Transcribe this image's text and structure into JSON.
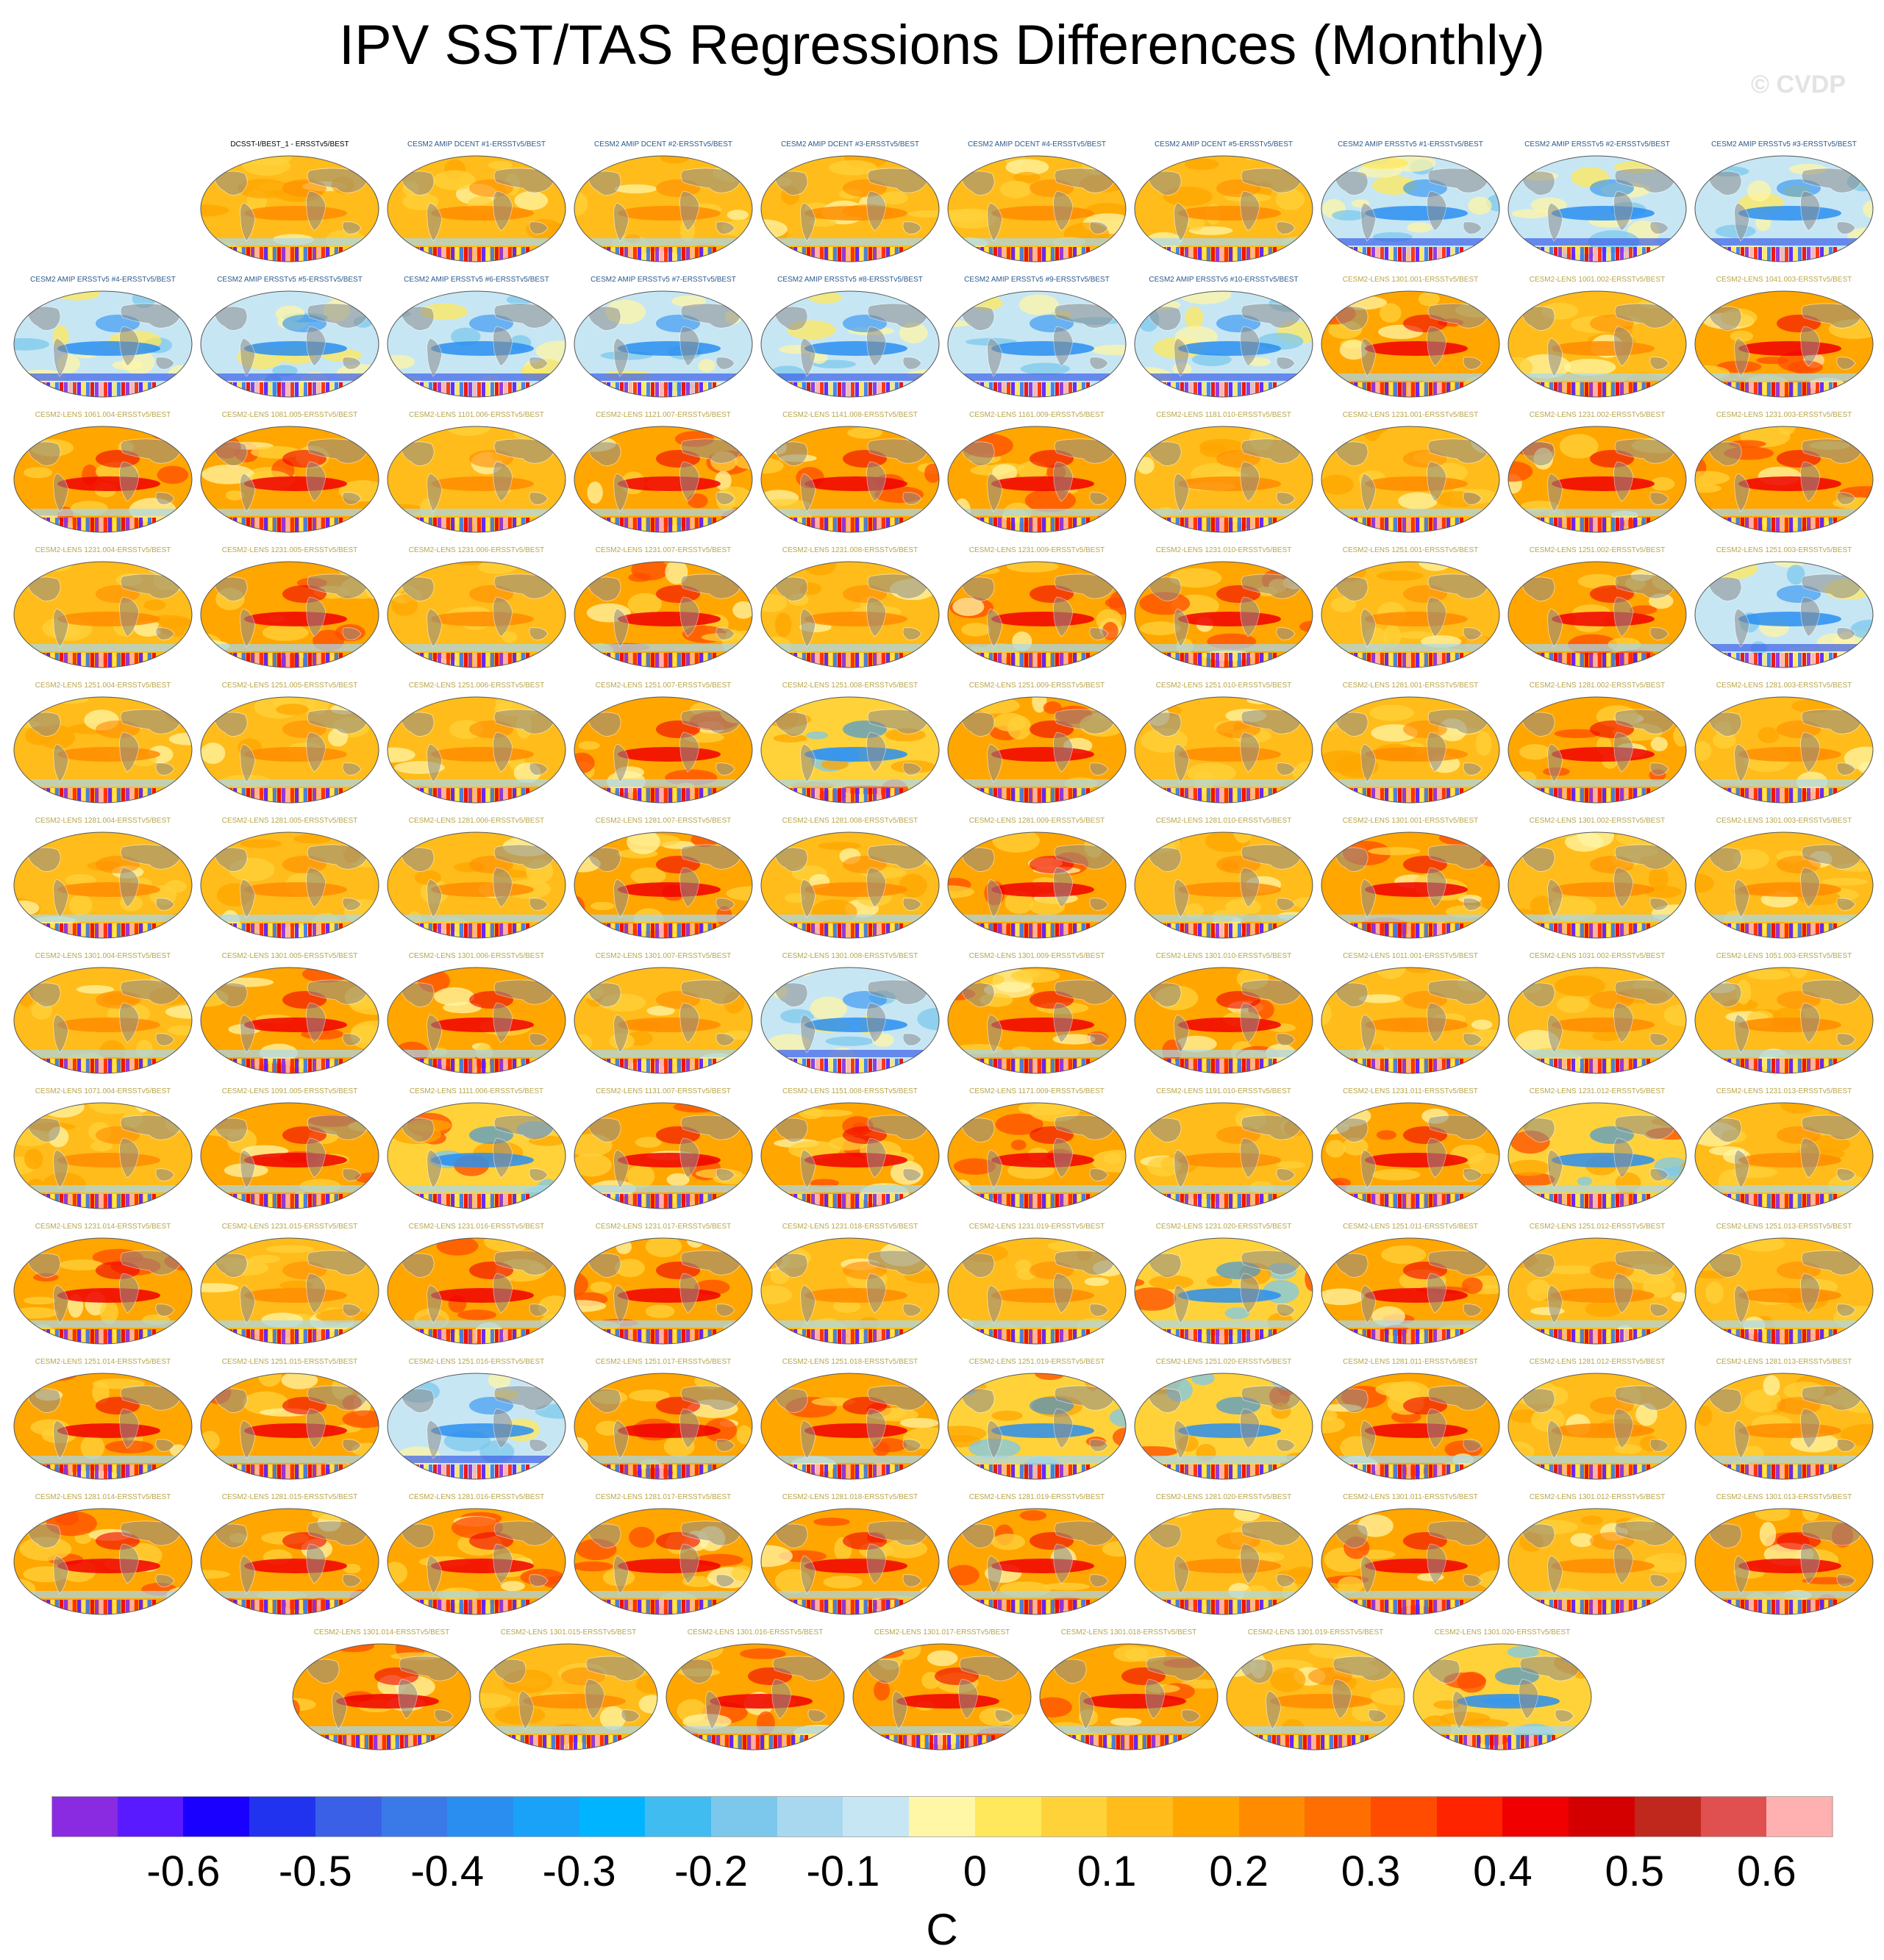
{
  "title": "IPV SST/TAS Regressions Differences (Monthly)",
  "watermark": "© CVDP",
  "chart_data": {
    "type": "heatmap",
    "title": "IPV SST/TAS Regressions Differences (Monthly)",
    "colorbar": {
      "units": "C",
      "tick_labels": [
        "-0.6",
        "-0.5",
        "-0.4",
        "-0.3",
        "-0.2",
        "-0.1",
        "0",
        "0.1",
        "0.2",
        "0.3",
        "0.4",
        "0.5",
        "0.6"
      ],
      "tick_values": [
        -0.6,
        -0.5,
        -0.4,
        -0.3,
        -0.2,
        -0.1,
        0,
        0.1,
        0.2,
        0.3,
        0.4,
        0.5,
        0.6
      ],
      "levels": [
        -0.65,
        -0.6,
        -0.55,
        -0.5,
        -0.45,
        -0.4,
        -0.35,
        -0.3,
        -0.25,
        -0.2,
        -0.15,
        -0.1,
        -0.05,
        0,
        0.05,
        0.1,
        0.15,
        0.2,
        0.25,
        0.3,
        0.35,
        0.4,
        0.45,
        0.5,
        0.55,
        0.6,
        0.65
      ],
      "colors": [
        "#8a2be2",
        "#5a1aff",
        "#1a00ff",
        "#2233f0",
        "#3a60e8",
        "#3a7ae8",
        "#2a8ef0",
        "#1aa2f8",
        "#00b4ff",
        "#40bcf0",
        "#7cc8ec",
        "#a8d8f0",
        "#c6e6f4",
        "#fff6a6",
        "#ffe85c",
        "#ffd23a",
        "#ffbc1a",
        "#ffa600",
        "#ff8c00",
        "#ff6e00",
        "#ff4c00",
        "#ff2400",
        "#f00000",
        "#d40000",
        "#c0281e",
        "#e05050",
        "#ffb0b0"
      ]
    },
    "rows": [
      {
        "panels": [
          {
            "label": "DCSST-I/BEST_1 - ERSSTv5/BEST",
            "pattern": "warm",
            "label_color": "#000000"
          },
          {
            "label": "CESM2 AMIP DCENT #1-ERSSTv5/BEST",
            "pattern": "warm",
            "label_color": "#2a5a8c"
          },
          {
            "label": "CESM2 AMIP DCENT #2-ERSSTv5/BEST",
            "pattern": "warm",
            "label_color": "#2a5a8c"
          },
          {
            "label": "CESM2 AMIP DCENT #3-ERSSTv5/BEST",
            "pattern": "warm",
            "label_color": "#2a5a8c"
          },
          {
            "label": "CESM2 AMIP DCENT #4-ERSSTv5/BEST",
            "pattern": "warm",
            "label_color": "#2a5a8c"
          },
          {
            "label": "CESM2 AMIP DCENT #5-ERSSTv5/BEST",
            "pattern": "warm",
            "label_color": "#2a5a8c"
          },
          {
            "label": "CESM2 AMIP ERSSTv5 #1-ERSSTv5/BEST",
            "pattern": "cool",
            "label_color": "#2a5a8c"
          },
          {
            "label": "CESM2 AMIP ERSSTv5 #2-ERSSTv5/BEST",
            "pattern": "cool",
            "label_color": "#2a5a8c"
          },
          {
            "label": "CESM2 AMIP ERSSTv5 #3-ERSSTv5/BEST",
            "pattern": "cool",
            "label_color": "#2a5a8c"
          }
        ]
      },
      {
        "panels": [
          {
            "label": "CESM2 AMIP ERSSTv5 #4-ERSSTv5/BEST",
            "pattern": "cool",
            "label_color": "#2a5a8c"
          },
          {
            "label": "CESM2 AMIP ERSSTv5 #5-ERSSTv5/BEST",
            "pattern": "cool",
            "label_color": "#2a5a8c"
          },
          {
            "label": "CESM2 AMIP ERSSTv5 #6-ERSSTv5/BEST",
            "pattern": "cool",
            "label_color": "#2a5a8c"
          },
          {
            "label": "CESM2 AMIP ERSSTv5 #7-ERSSTv5/BEST",
            "pattern": "cool",
            "label_color": "#2a5a8c"
          },
          {
            "label": "CESM2 AMIP ERSSTv5 #8-ERSSTv5/BEST",
            "pattern": "cool",
            "label_color": "#2a5a8c"
          },
          {
            "label": "CESM2 AMIP ERSSTv5 #9-ERSSTv5/BEST",
            "pattern": "cool",
            "label_color": "#2a5a8c"
          },
          {
            "label": "CESM2 AMIP ERSSTv5 #10-ERSSTv5/BEST",
            "pattern": "cool",
            "label_color": "#2a5a8c"
          },
          {
            "label": "CESM2-LENS 1301.001-ERSSTv5/BEST",
            "pattern": "strong",
            "label_color": "#b8a64a"
          },
          {
            "label": "CESM2-LENS 1001.002-ERSSTv5/BEST",
            "pattern": "warm",
            "label_color": "#b8a64a"
          },
          {
            "label": "CESM2-LENS 1041.003-ERSSTv5/BEST",
            "pattern": "strong",
            "label_color": "#b8a64a"
          }
        ]
      },
      {
        "panels": [
          {
            "label": "CESM2-LENS 1061.004-ERSSTv5/BEST",
            "pattern": "strong",
            "label_color": "#b8a64a"
          },
          {
            "label": "CESM2-LENS 1081.005-ERSSTv5/BEST",
            "pattern": "strong",
            "label_color": "#b8a64a"
          },
          {
            "label": "CESM2-LENS 1101.006-ERSSTv5/BEST",
            "pattern": "warm",
            "label_color": "#b8a64a"
          },
          {
            "label": "CESM2-LENS 1121.007-ERSSTv5/BEST",
            "pattern": "strong",
            "label_color": "#b8a64a"
          },
          {
            "label": "CESM2-LENS 1141.008-ERSSTv5/BEST",
            "pattern": "strong",
            "label_color": "#b8a64a"
          },
          {
            "label": "CESM2-LENS 1161.009-ERSSTv5/BEST",
            "pattern": "strong",
            "label_color": "#b8a64a"
          },
          {
            "label": "CESM2-LENS 1181.010-ERSSTv5/BEST",
            "pattern": "warm",
            "label_color": "#b8a64a"
          },
          {
            "label": "CESM2-LENS 1231.001-ERSSTv5/BEST",
            "pattern": "warm",
            "label_color": "#b8a64a"
          },
          {
            "label": "CESM2-LENS 1231.002-ERSSTv5/BEST",
            "pattern": "strong",
            "label_color": "#b8a64a"
          },
          {
            "label": "CESM2-LENS 1231.003-ERSSTv5/BEST",
            "pattern": "strong",
            "label_color": "#b8a64a"
          }
        ]
      },
      {
        "panels": [
          {
            "label": "CESM2-LENS 1231.004-ERSSTv5/BEST",
            "pattern": "warm",
            "label_color": "#b8a64a"
          },
          {
            "label": "CESM2-LENS 1231.005-ERSSTv5/BEST",
            "pattern": "strong",
            "label_color": "#b8a64a"
          },
          {
            "label": "CESM2-LENS 1231.006-ERSSTv5/BEST",
            "pattern": "warm",
            "label_color": "#b8a64a"
          },
          {
            "label": "CESM2-LENS 1231.007-ERSSTv5/BEST",
            "pattern": "strong",
            "label_color": "#b8a64a"
          },
          {
            "label": "CESM2-LENS 1231.008-ERSSTv5/BEST",
            "pattern": "warm",
            "label_color": "#b8a64a"
          },
          {
            "label": "CESM2-LENS 1231.009-ERSSTv5/BEST",
            "pattern": "strong",
            "label_color": "#b8a64a"
          },
          {
            "label": "CESM2-LENS 1231.010-ERSSTv5/BEST",
            "pattern": "strong",
            "label_color": "#b8a64a"
          },
          {
            "label": "CESM2-LENS 1251.001-ERSSTv5/BEST",
            "pattern": "warm",
            "label_color": "#b8a64a"
          },
          {
            "label": "CESM2-LENS 1251.002-ERSSTv5/BEST",
            "pattern": "strong",
            "label_color": "#b8a64a"
          },
          {
            "label": "CESM2-LENS 1251.003-ERSSTv5/BEST",
            "pattern": "cool",
            "label_color": "#b8a64a"
          }
        ]
      },
      {
        "panels": [
          {
            "label": "CESM2-LENS 1251.004-ERSSTv5/BEST",
            "pattern": "warm",
            "label_color": "#b8a64a"
          },
          {
            "label": "CESM2-LENS 1251.005-ERSSTv5/BEST",
            "pattern": "warm",
            "label_color": "#b8a64a"
          },
          {
            "label": "CESM2-LENS 1251.006-ERSSTv5/BEST",
            "pattern": "warm",
            "label_color": "#b8a64a"
          },
          {
            "label": "CESM2-LENS 1251.007-ERSSTv5/BEST",
            "pattern": "strong",
            "label_color": "#b8a64a"
          },
          {
            "label": "CESM2-LENS 1251.008-ERSSTv5/BEST",
            "pattern": "mixed",
            "label_color": "#b8a64a"
          },
          {
            "label": "CESM2-LENS 1251.009-ERSSTv5/BEST",
            "pattern": "strong",
            "label_color": "#b8a64a"
          },
          {
            "label": "CESM2-LENS 1251.010-ERSSTv5/BEST",
            "pattern": "warm",
            "label_color": "#b8a64a"
          },
          {
            "label": "CESM2-LENS 1281.001-ERSSTv5/BEST",
            "pattern": "warm",
            "label_color": "#b8a64a"
          },
          {
            "label": "CESM2-LENS 1281.002-ERSSTv5/BEST",
            "pattern": "strong",
            "label_color": "#b8a64a"
          },
          {
            "label": "CESM2-LENS 1281.003-ERSSTv5/BEST",
            "pattern": "warm",
            "label_color": "#b8a64a"
          }
        ]
      },
      {
        "panels": [
          {
            "label": "CESM2-LENS 1281.004-ERSSTv5/BEST",
            "pattern": "warm",
            "label_color": "#b8a64a"
          },
          {
            "label": "CESM2-LENS 1281.005-ERSSTv5/BEST",
            "pattern": "warm",
            "label_color": "#b8a64a"
          },
          {
            "label": "CESM2-LENS 1281.006-ERSSTv5/BEST",
            "pattern": "warm",
            "label_color": "#b8a64a"
          },
          {
            "label": "CESM2-LENS 1281.007-ERSSTv5/BEST",
            "pattern": "strong",
            "label_color": "#b8a64a"
          },
          {
            "label": "CESM2-LENS 1281.008-ERSSTv5/BEST",
            "pattern": "warm",
            "label_color": "#b8a64a"
          },
          {
            "label": "CESM2-LENS 1281.009-ERSSTv5/BEST",
            "pattern": "strong",
            "label_color": "#b8a64a"
          },
          {
            "label": "CESM2-LENS 1281.010-ERSSTv5/BEST",
            "pattern": "warm",
            "label_color": "#b8a64a"
          },
          {
            "label": "CESM2-LENS 1301.001-ERSSTv5/BEST",
            "pattern": "strong",
            "label_color": "#b8a64a"
          },
          {
            "label": "CESM2-LENS 1301.002-ERSSTv5/BEST",
            "pattern": "warm",
            "label_color": "#b8a64a"
          },
          {
            "label": "CESM2-LENS 1301.003-ERSSTv5/BEST",
            "pattern": "warm",
            "label_color": "#b8a64a"
          }
        ]
      },
      {
        "panels": [
          {
            "label": "CESM2-LENS 1301.004-ERSSTv5/BEST",
            "pattern": "warm",
            "label_color": "#b8a64a"
          },
          {
            "label": "CESM2-LENS 1301.005-ERSSTv5/BEST",
            "pattern": "strong",
            "label_color": "#b8a64a"
          },
          {
            "label": "CESM2-LENS 1301.006-ERSSTv5/BEST",
            "pattern": "strong",
            "label_color": "#b8a64a"
          },
          {
            "label": "CESM2-LENS 1301.007-ERSSTv5/BEST",
            "pattern": "warm",
            "label_color": "#b8a64a"
          },
          {
            "label": "CESM2-LENS 1301.008-ERSSTv5/BEST",
            "pattern": "cool",
            "label_color": "#b8a64a"
          },
          {
            "label": "CESM2-LENS 1301.009-ERSSTv5/BEST",
            "pattern": "strong",
            "label_color": "#b8a64a"
          },
          {
            "label": "CESM2-LENS 1301.010-ERSSTv5/BEST",
            "pattern": "strong",
            "label_color": "#b8a64a"
          },
          {
            "label": "CESM2-LENS 1011.001-ERSSTv5/BEST",
            "pattern": "warm",
            "label_color": "#b8a64a"
          },
          {
            "label": "CESM2-LENS 1031.002-ERSSTv5/BEST",
            "pattern": "warm",
            "label_color": "#b8a64a"
          },
          {
            "label": "CESM2-LENS 1051.003-ERSSTv5/BEST",
            "pattern": "warm",
            "label_color": "#b8a64a"
          }
        ]
      },
      {
        "panels": [
          {
            "label": "CESM2-LENS 1071.004-ERSSTv5/BEST",
            "pattern": "warm",
            "label_color": "#b8a64a"
          },
          {
            "label": "CESM2-LENS 1091.005-ERSSTv5/BEST",
            "pattern": "strong",
            "label_color": "#b8a64a"
          },
          {
            "label": "CESM2-LENS 1111.006-ERSSTv5/BEST",
            "pattern": "mixed",
            "label_color": "#b8a64a"
          },
          {
            "label": "CESM2-LENS 1131.007-ERSSTv5/BEST",
            "pattern": "strong",
            "label_color": "#b8a64a"
          },
          {
            "label": "CESM2-LENS 1151.008-ERSSTv5/BEST",
            "pattern": "strong",
            "label_color": "#b8a64a"
          },
          {
            "label": "CESM2-LENS 1171.009-ERSSTv5/BEST",
            "pattern": "strong",
            "label_color": "#b8a64a"
          },
          {
            "label": "CESM2-LENS 1191.010-ERSSTv5/BEST",
            "pattern": "warm",
            "label_color": "#b8a64a"
          },
          {
            "label": "CESM2-LENS 1231.011-ERSSTv5/BEST",
            "pattern": "strong",
            "label_color": "#b8a64a"
          },
          {
            "label": "CESM2-LENS 1231.012-ERSSTv5/BEST",
            "pattern": "mixed",
            "label_color": "#b8a64a"
          },
          {
            "label": "CESM2-LENS 1231.013-ERSSTv5/BEST",
            "pattern": "warm",
            "label_color": "#b8a64a"
          }
        ]
      },
      {
        "panels": [
          {
            "label": "CESM2-LENS 1231.014-ERSSTv5/BEST",
            "pattern": "strong",
            "label_color": "#b8a64a"
          },
          {
            "label": "CESM2-LENS 1231.015-ERSSTv5/BEST",
            "pattern": "warm",
            "label_color": "#b8a64a"
          },
          {
            "label": "CESM2-LENS 1231.016-ERSSTv5/BEST",
            "pattern": "strong",
            "label_color": "#b8a64a"
          },
          {
            "label": "CESM2-LENS 1231.017-ERSSTv5/BEST",
            "pattern": "strong",
            "label_color": "#b8a64a"
          },
          {
            "label": "CESM2-LENS 1231.018-ERSSTv5/BEST",
            "pattern": "warm",
            "label_color": "#b8a64a"
          },
          {
            "label": "CESM2-LENS 1231.019-ERSSTv5/BEST",
            "pattern": "warm",
            "label_color": "#b8a64a"
          },
          {
            "label": "CESM2-LENS 1231.020-ERSSTv5/BEST",
            "pattern": "mixed",
            "label_color": "#b8a64a"
          },
          {
            "label": "CESM2-LENS 1251.011-ERSSTv5/BEST",
            "pattern": "strong",
            "label_color": "#b8a64a"
          },
          {
            "label": "CESM2-LENS 1251.012-ERSSTv5/BEST",
            "pattern": "warm",
            "label_color": "#b8a64a"
          },
          {
            "label": "CESM2-LENS 1251.013-ERSSTv5/BEST",
            "pattern": "warm",
            "label_color": "#b8a64a"
          }
        ]
      },
      {
        "panels": [
          {
            "label": "CESM2-LENS 1251.014-ERSSTv5/BEST",
            "pattern": "strong",
            "label_color": "#b8a64a"
          },
          {
            "label": "CESM2-LENS 1251.015-ERSSTv5/BEST",
            "pattern": "strong",
            "label_color": "#b8a64a"
          },
          {
            "label": "CESM2-LENS 1251.016-ERSSTv5/BEST",
            "pattern": "cool",
            "label_color": "#b8a64a"
          },
          {
            "label": "CESM2-LENS 1251.017-ERSSTv5/BEST",
            "pattern": "strong",
            "label_color": "#b8a64a"
          },
          {
            "label": "CESM2-LENS 1251.018-ERSSTv5/BEST",
            "pattern": "strong",
            "label_color": "#b8a64a"
          },
          {
            "label": "CESM2-LENS 1251.019-ERSSTv5/BEST",
            "pattern": "mixed",
            "label_color": "#b8a64a"
          },
          {
            "label": "CESM2-LENS 1251.020-ERSSTv5/BEST",
            "pattern": "mixed",
            "label_color": "#b8a64a"
          },
          {
            "label": "CESM2-LENS 1281.011-ERSSTv5/BEST",
            "pattern": "strong",
            "label_color": "#b8a64a"
          },
          {
            "label": "CESM2-LENS 1281.012-ERSSTv5/BEST",
            "pattern": "warm",
            "label_color": "#b8a64a"
          },
          {
            "label": "CESM2-LENS 1281.013-ERSSTv5/BEST",
            "pattern": "warm",
            "label_color": "#b8a64a"
          }
        ]
      },
      {
        "panels": [
          {
            "label": "CESM2-LENS 1281.014-ERSSTv5/BEST",
            "pattern": "strong",
            "label_color": "#b8a64a"
          },
          {
            "label": "CESM2-LENS 1281.015-ERSSTv5/BEST",
            "pattern": "strong",
            "label_color": "#b8a64a"
          },
          {
            "label": "CESM2-LENS 1281.016-ERSSTv5/BEST",
            "pattern": "strong",
            "label_color": "#b8a64a"
          },
          {
            "label": "CESM2-LENS 1281.017-ERSSTv5/BEST",
            "pattern": "strong",
            "label_color": "#b8a64a"
          },
          {
            "label": "CESM2-LENS 1281.018-ERSSTv5/BEST",
            "pattern": "strong",
            "label_color": "#b8a64a"
          },
          {
            "label": "CESM2-LENS 1281.019-ERSSTv5/BEST",
            "pattern": "strong",
            "label_color": "#b8a64a"
          },
          {
            "label": "CESM2-LENS 1281.020-ERSSTv5/BEST",
            "pattern": "warm",
            "label_color": "#b8a64a"
          },
          {
            "label": "CESM2-LENS 1301.011-ERSSTv5/BEST",
            "pattern": "strong",
            "label_color": "#b8a64a"
          },
          {
            "label": "CESM2-LENS 1301.012-ERSSTv5/BEST",
            "pattern": "warm",
            "label_color": "#b8a64a"
          },
          {
            "label": "CESM2-LENS 1301.013-ERSSTv5/BEST",
            "pattern": "strong",
            "label_color": "#b8a64a"
          }
        ]
      },
      {
        "panels": [
          {
            "label": "CESM2-LENS 1301.014-ERSSTv5/BEST",
            "pattern": "strong",
            "label_color": "#b8a64a"
          },
          {
            "label": "CESM2-LENS 1301.015-ERSSTv5/BEST",
            "pattern": "warm",
            "label_color": "#b8a64a"
          },
          {
            "label": "CESM2-LENS 1301.016-ERSSTv5/BEST",
            "pattern": "strong",
            "label_color": "#b8a64a"
          },
          {
            "label": "CESM2-LENS 1301.017-ERSSTv5/BEST",
            "pattern": "strong",
            "label_color": "#b8a64a"
          },
          {
            "label": "CESM2-LENS 1301.018-ERSSTv5/BEST",
            "pattern": "strong",
            "label_color": "#b8a64a"
          },
          {
            "label": "CESM2-LENS 1301.019-ERSSTv5/BEST",
            "pattern": "warm",
            "label_color": "#b8a64a"
          },
          {
            "label": "CESM2-LENS 1301.020-ERSSTv5/BEST",
            "pattern": "mixed",
            "label_color": "#b8a64a"
          }
        ]
      }
    ]
  }
}
